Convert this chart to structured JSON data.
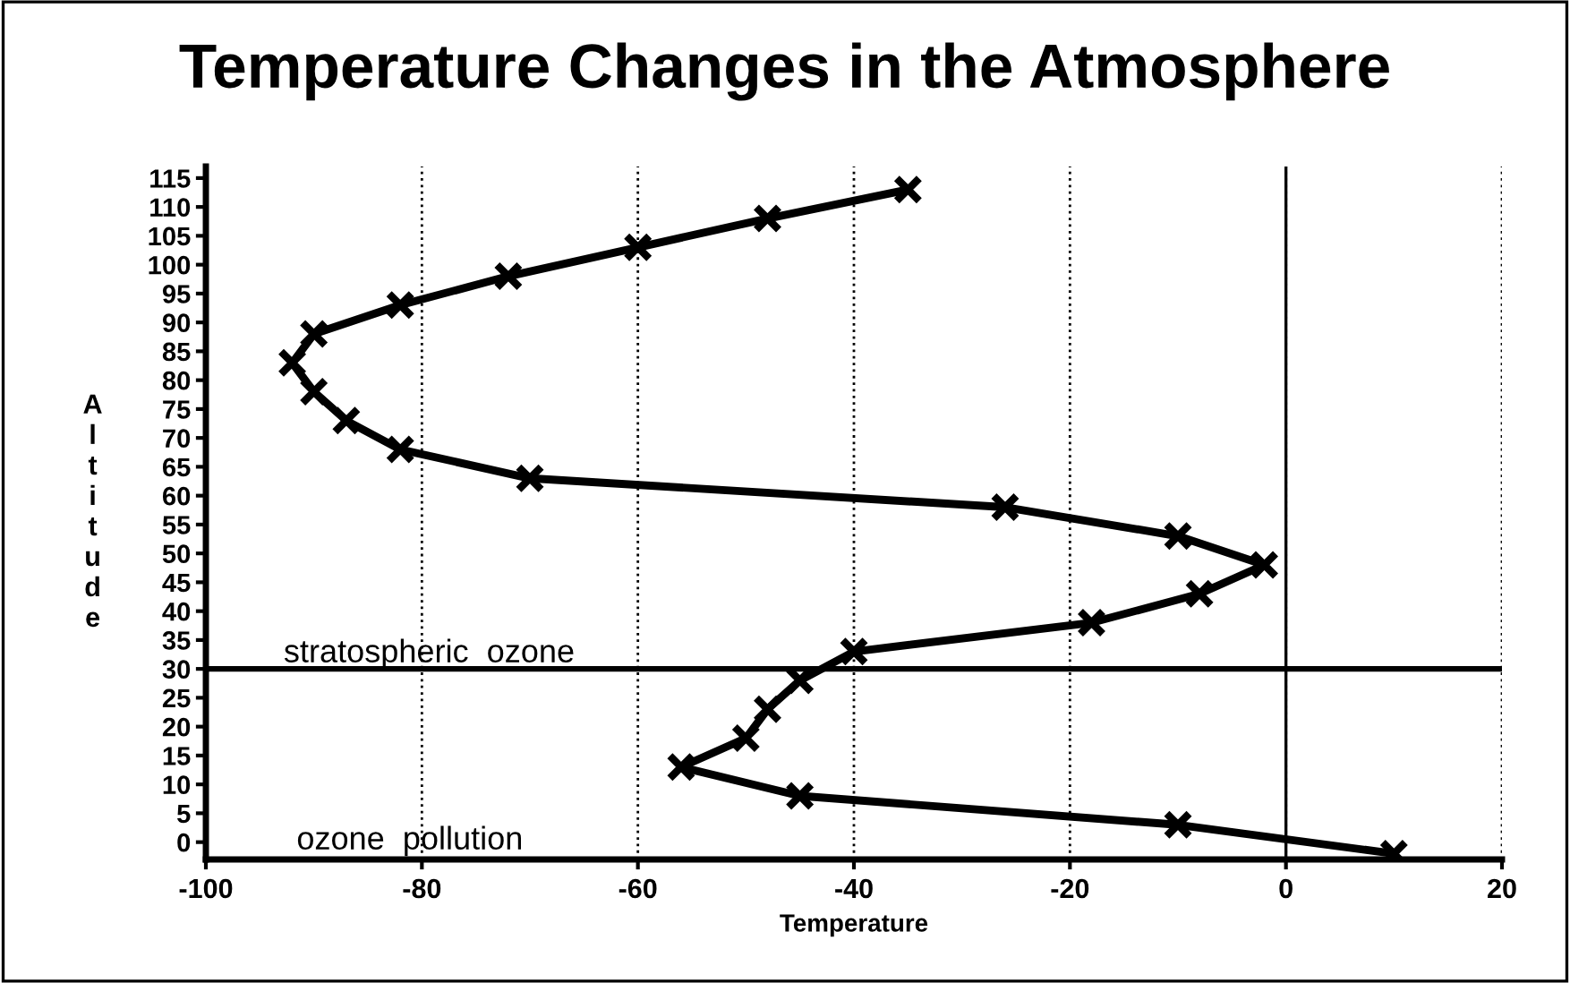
{
  "chart_data": {
    "type": "line",
    "title": "Temperature Changes in the Atmosphere",
    "xlabel": "Temperature",
    "ylabel": "Altitude",
    "series": [
      {
        "color": "#000000",
        "x": [
          -35,
          -48,
          -60,
          -72,
          -82,
          -90,
          -92,
          -90,
          -87,
          -82,
          -70,
          -26,
          -10,
          -2,
          -8,
          -18,
          -40,
          -45,
          -48,
          -50,
          -56,
          -45,
          -10,
          10
        ],
        "values": [
          113,
          108,
          103,
          98,
          93,
          88,
          83,
          78,
          73,
          68,
          63,
          58,
          53,
          48,
          43,
          38,
          33,
          28,
          23,
          18,
          13,
          8,
          3,
          -2
        ]
      }
    ],
    "marker": "cross",
    "line_style": "solid",
    "xlim": [
      -100,
      20
    ],
    "xticks": [
      -100,
      -80,
      -60,
      -40,
      -20,
      0,
      20
    ],
    "ylim": [
      -3,
      117
    ],
    "yticks": [
      0,
      5,
      10,
      15,
      20,
      25,
      30,
      35,
      40,
      45,
      50,
      55,
      60,
      65,
      70,
      75,
      80,
      85,
      90,
      95,
      100,
      105,
      110,
      115
    ],
    "grid": "x",
    "ref_lines": [
      {
        "axis": "y",
        "value": 30,
        "label": "stratospheric  ozone",
        "color": "#000000",
        "line_style": "solid"
      },
      {
        "axis": "x",
        "value": 0,
        "color": "#000000",
        "line_style": "solid"
      }
    ],
    "annotations": [
      "ozone  pollution"
    ]
  }
}
